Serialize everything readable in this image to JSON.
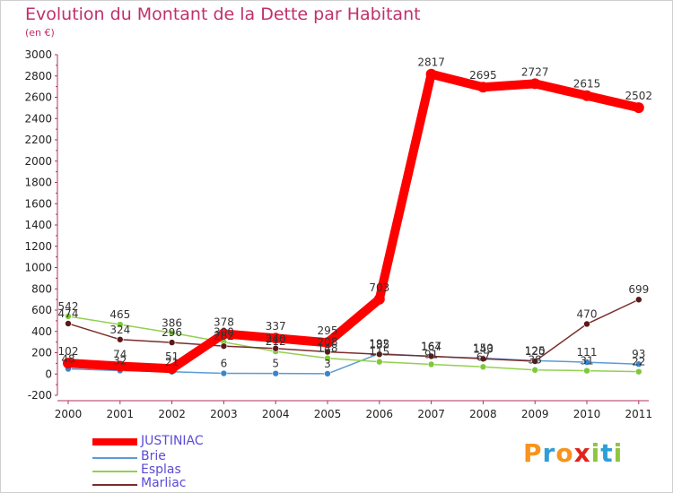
{
  "title": "Evolution du Montant de la Dette par Habitant",
  "subtitle": "(en €)",
  "chart_data": {
    "type": "line",
    "title": "Evolution du Montant de la Dette par Habitant",
    "subtitle": "(en €)",
    "xlabel": "",
    "ylabel": "",
    "x": [
      "2000",
      "2001",
      "2002",
      "2003",
      "2004",
      "2005",
      "2006",
      "2007",
      "2008",
      "2009",
      "2010",
      "2011"
    ],
    "ylim": [
      -200,
      3000
    ],
    "yticks": [
      -200,
      0,
      200,
      400,
      600,
      800,
      1000,
      1200,
      1400,
      1600,
      1800,
      2000,
      2200,
      2400,
      2600,
      2800,
      3000
    ],
    "grid": false,
    "legend_position": "bottom-left",
    "series": [
      {
        "name": "JUSTINIAC",
        "color": "#ff0000",
        "values": [
          102,
          74,
          51,
          378,
          337,
          295,
          703,
          2817,
          2695,
          2727,
          2615,
          2502
        ]
      },
      {
        "name": "Brie",
        "color": "#5b9bd5",
        "values": [
          48,
          32,
          21,
          6,
          5,
          3,
          192,
          164,
          150,
          125,
          111,
          93
        ]
      },
      {
        "name": "Esplas",
        "color": "#92d050",
        "values": [
          542,
          465,
          386,
          300,
          212,
          148,
          115,
          91,
          67,
          38,
          31,
          22
        ]
      },
      {
        "name": "Marliac",
        "color": "#7b2c2c",
        "values": [
          474,
          324,
          296,
          262,
          240,
          208,
          185,
          167,
          143,
          120,
          470,
          699
        ]
      }
    ],
    "data_labels": {
      "JUSTINIAC": [
        "102",
        "74",
        "51",
        "378",
        "337",
        "295",
        "703",
        "2817",
        "2695",
        "2727",
        "2615",
        "2502"
      ],
      "Brie": [
        "48",
        "32",
        "21",
        "6",
        "5",
        "3",
        "192",
        "164",
        "150",
        "125",
        "111",
        "93"
      ],
      "Esplas": [
        "542",
        "465",
        "386",
        "300",
        "212",
        "148",
        "115",
        "91",
        "67",
        "38",
        "31",
        "22"
      ],
      "Marliac": [
        "474",
        "324",
        "296",
        "262",
        "240",
        "208",
        "185",
        "167",
        "143",
        "120",
        "470",
        "699"
      ]
    }
  },
  "legend": [
    {
      "label": "JUSTINIAC",
      "color": "#ff0000"
    },
    {
      "label": "Brie",
      "color": "#5b9bd5"
    },
    {
      "label": "Esplas",
      "color": "#92d050"
    },
    {
      "label": "Marliac",
      "color": "#7b2c2c"
    }
  ],
  "logo": {
    "text": "Proxiti",
    "letters": [
      {
        "char": "P",
        "color": "#f7941d"
      },
      {
        "char": "r",
        "color": "#2e9fd8"
      },
      {
        "char": "o",
        "color": "#f7941d"
      },
      {
        "char": "x",
        "color": "#e2231a"
      },
      {
        "char": "i",
        "color": "#8dc63f"
      },
      {
        "char": "t",
        "color": "#2e9fd8"
      },
      {
        "char": "i",
        "color": "#8dc63f"
      }
    ]
  }
}
